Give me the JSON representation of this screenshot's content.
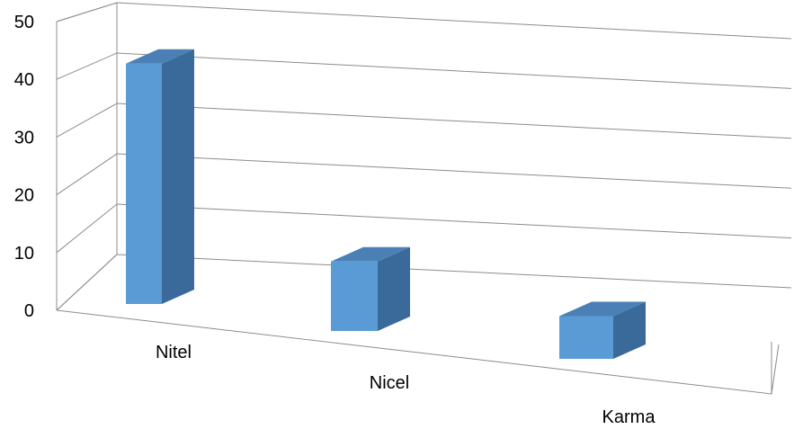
{
  "chart_data": {
    "type": "bar",
    "style": "3d-column",
    "categories": [
      "Nitel",
      "Nicel",
      "Karma"
    ],
    "values": [
      45,
      13,
      8
    ],
    "y_ticks": [
      "0",
      "10",
      "20",
      "30",
      "40",
      "50"
    ],
    "ylim": [
      0,
      50
    ],
    "grid": true,
    "legend": "none",
    "colors": {
      "bar_front": "#5b9bd5",
      "bar_side": "#3a6a99",
      "bar_top": "#4a80b5",
      "gridline": "#8c8c8c",
      "text": "#000000"
    }
  }
}
